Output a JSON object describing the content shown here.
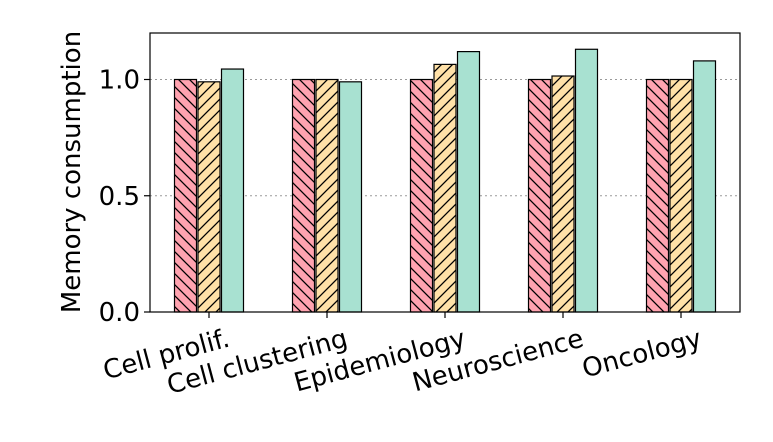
{
  "chart_data": {
    "type": "bar",
    "title": "",
    "xlabel": "",
    "ylabel": "Memory consumption",
    "categories": [
      "Cell prolif.",
      "Cell clustering",
      "Epidemiology",
      "Neuroscience",
      "Oncology"
    ],
    "series": [
      {
        "values": [
          1.0,
          1.0,
          1.0,
          1.0,
          1.0
        ],
        "color": "#FFA3B0",
        "hatch": "backslash"
      },
      {
        "values": [
          0.99,
          1.0,
          1.065,
          1.015,
          1.0
        ],
        "color": "#FFE1A8",
        "hatch": "slash"
      },
      {
        "values": [
          1.045,
          0.99,
          1.12,
          1.13,
          1.08
        ],
        "color": "#A8E1D1",
        "hatch": "none"
      }
    ],
    "ylim": [
      0,
      1.2
    ],
    "yticks": [
      0.0,
      0.5,
      1.0
    ],
    "ytick_labels": [
      "0.0",
      "0.5",
      "1.0"
    ],
    "grid": "y-dotted",
    "legend": "none"
  }
}
